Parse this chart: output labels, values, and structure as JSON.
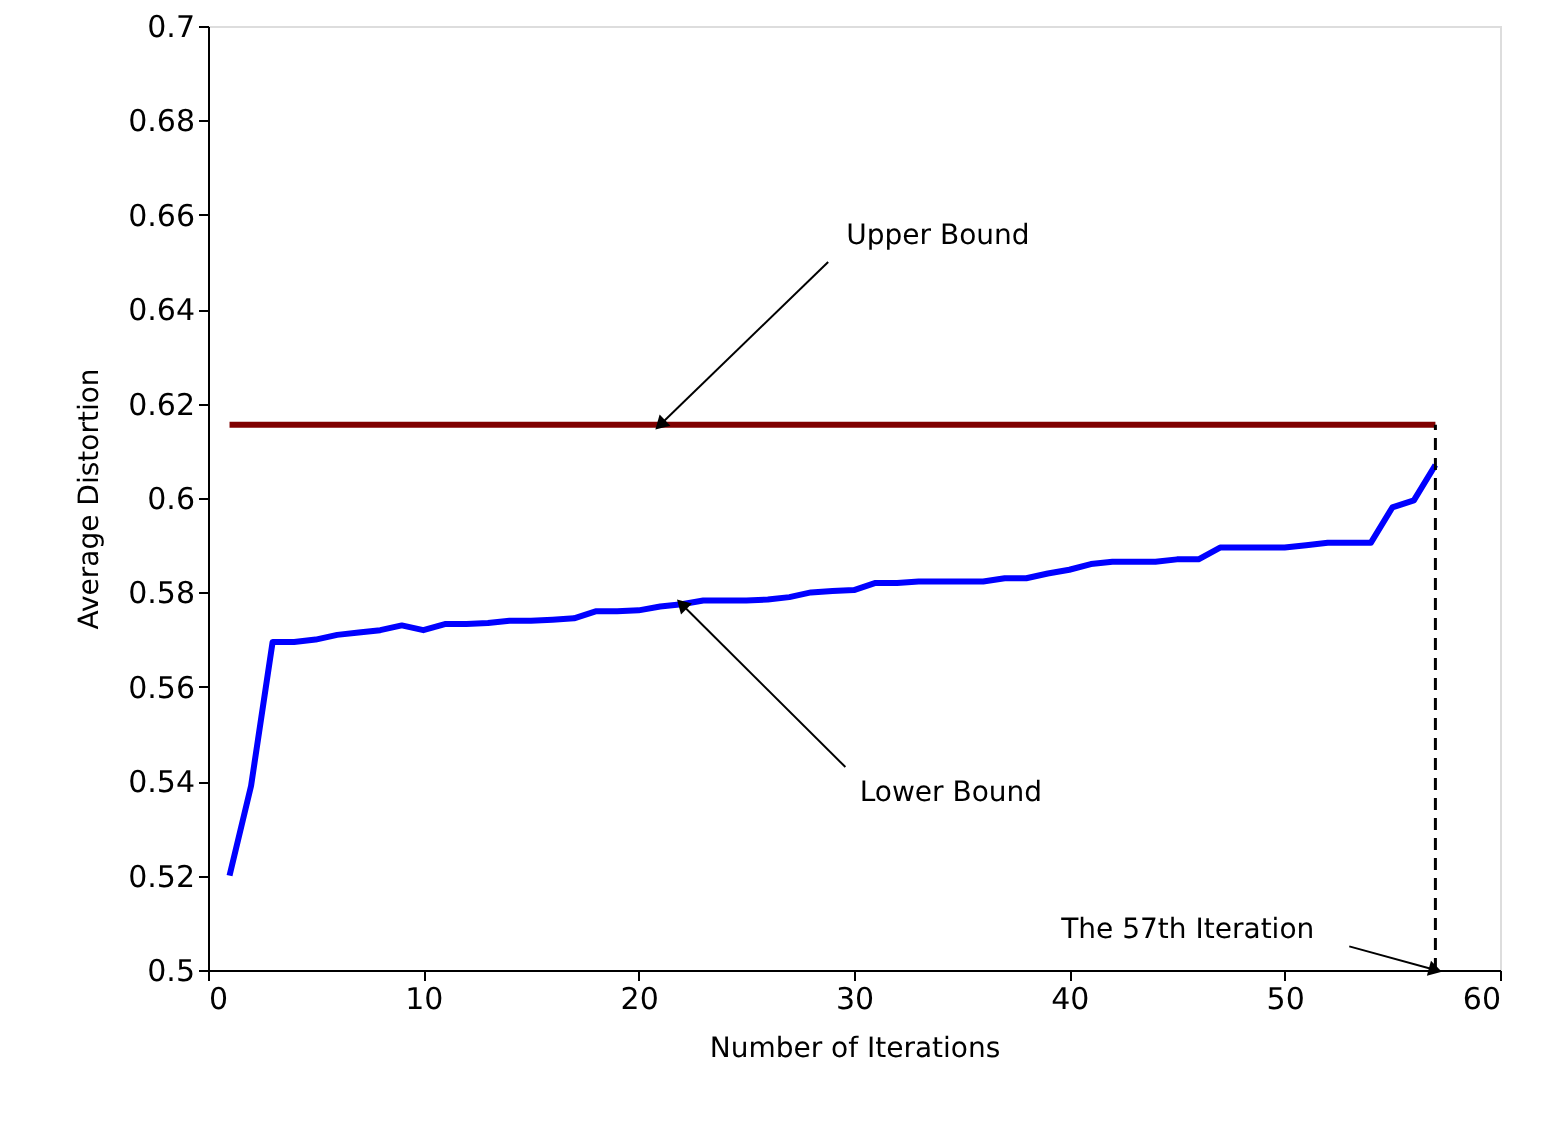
{
  "chart_data": {
    "type": "line",
    "xlabel": "Number of Iterations",
    "ylabel": "Average Distortion",
    "series": [
      {
        "color": "#800000",
        "x": [
          1,
          57
        ],
        "values": [
          0.6155,
          0.6155
        ]
      },
      {
        "color": "#0000ff",
        "x": [
          1,
          2,
          3,
          4,
          5,
          6,
          7,
          8,
          9,
          10,
          11,
          12,
          13,
          14,
          15,
          16,
          17,
          18,
          19,
          20,
          21,
          22,
          23,
          24,
          25,
          26,
          27,
          28,
          29,
          30,
          31,
          32,
          33,
          34,
          35,
          36,
          37,
          38,
          39,
          40,
          41,
          42,
          43,
          44,
          45,
          46,
          47,
          48,
          49,
          50,
          51,
          52,
          53,
          54,
          55,
          56,
          57
        ],
        "values": [
          0.52,
          0.539,
          0.5695,
          0.5695,
          0.57,
          0.571,
          0.5715,
          0.572,
          0.573,
          0.572,
          0.5733,
          0.5733,
          0.5735,
          0.574,
          0.574,
          0.5742,
          0.5745,
          0.576,
          0.576,
          0.5762,
          0.577,
          0.5775,
          0.5783,
          0.5783,
          0.5783,
          0.5785,
          0.579,
          0.58,
          0.5803,
          0.5805,
          0.582,
          0.582,
          0.5823,
          0.5823,
          0.5823,
          0.5823,
          0.583,
          0.583,
          0.584,
          0.5848,
          0.586,
          0.5865,
          0.5865,
          0.5865,
          0.587,
          0.587,
          0.5895,
          0.5895,
          0.5895,
          0.5895,
          0.59,
          0.5905,
          0.5905,
          0.5905,
          0.598,
          0.5995,
          0.607
        ]
      }
    ],
    "ref_lines": [
      {
        "axis": "x",
        "value": 57,
        "color": "#000000",
        "line_style": "dashed"
      }
    ],
    "annotations": [
      {
        "text": "Upper Bound",
        "x": 21,
        "y": 0.6155
      },
      {
        "text": "Lower Bound",
        "x": 22,
        "y": 0.5775
      },
      {
        "text": "The 57th Iteration",
        "x": 57,
        "y": 0.5
      }
    ],
    "xlim": [
      0,
      60
    ],
    "xticks": [
      0,
      10,
      20,
      30,
      40,
      50,
      60
    ],
    "ylim": [
      0.5,
      0.7
    ],
    "yticks": [
      0.5,
      0.52,
      0.54,
      0.56,
      0.58,
      0.6,
      0.62,
      0.64,
      0.66,
      0.68,
      0.7
    ],
    "grid": false,
    "marker": "none",
    "line_style": "solid"
  }
}
